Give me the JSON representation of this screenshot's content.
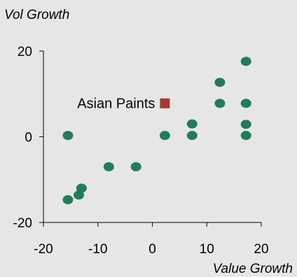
{
  "chart_data": {
    "type": "scatter",
    "title": "Vol Growth",
    "xlabel": "Value Growth",
    "ylabel": "Vol Growth",
    "xlim": [
      -20,
      20
    ],
    "ylim": [
      -20,
      20
    ],
    "x_ticks": [
      -20,
      -10,
      0,
      10,
      20
    ],
    "y_ticks": [
      -20,
      0,
      20
    ],
    "grid": false,
    "series": [
      {
        "marker": "circle",
        "color": "#1f7d57",
        "points": [
          [
            -15.5,
            0.3
          ],
          [
            -15.5,
            -14.7
          ],
          [
            -13.5,
            -13.6
          ],
          [
            -13.0,
            -12.0
          ],
          [
            -8.0,
            -7.0
          ],
          [
            -3.0,
            -7.0
          ],
          [
            2.3,
            0.3
          ],
          [
            7.3,
            3.0
          ],
          [
            7.3,
            0.3
          ],
          [
            12.4,
            12.7
          ],
          [
            12.4,
            7.8
          ],
          [
            17.2,
            17.6
          ],
          [
            17.2,
            7.8
          ],
          [
            17.2,
            2.9
          ],
          [
            17.2,
            0.3
          ]
        ]
      },
      {
        "marker": "square",
        "color": "#a33a2c",
        "points": [
          [
            2.3,
            7.8
          ]
        ]
      }
    ],
    "annotations": [
      {
        "text": "Asian Paints",
        "x": 2.3,
        "y": 7.8
      }
    ],
    "axis_color": "#000000",
    "background": "#e6e6e6"
  }
}
